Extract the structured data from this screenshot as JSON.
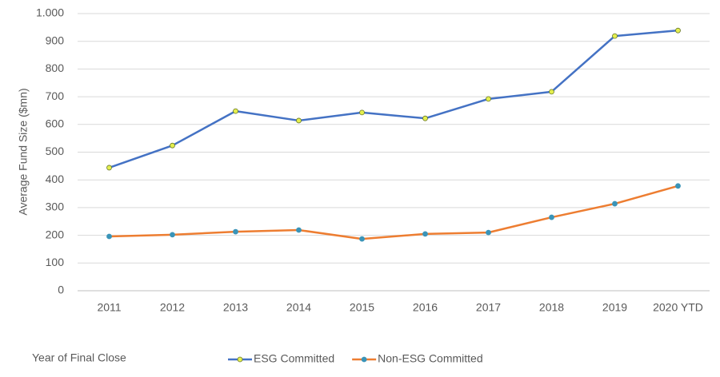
{
  "chart_data": {
    "type": "line",
    "y_label": "Average Fund Size ($mn)",
    "x_label": "Year of Final Close",
    "categories": [
      "2011",
      "2012",
      "2013",
      "2014",
      "2015",
      "2016",
      "2017",
      "2018",
      "2019",
      "2020 YTD"
    ],
    "series": [
      {
        "name": "ESG Committed",
        "color": "#4472c4",
        "marker_color": "#e4ef4f",
        "values": [
          444,
          524,
          648,
          614,
          643,
          622,
          692,
          718,
          919,
          939
        ]
      },
      {
        "name": "Non-ESG Committed",
        "color": "#ed7d31",
        "marker_color": "#3a94b8",
        "values": [
          196,
          202,
          213,
          219,
          187,
          205,
          210,
          265,
          314,
          378
        ]
      }
    ],
    "ylim": [
      0,
      1000
    ],
    "yticks": [
      0,
      100,
      200,
      300,
      400,
      500,
      600,
      700,
      800,
      900,
      {
        "value": 1000,
        "label": "1.000"
      }
    ],
    "grid": true,
    "legend": "bottom"
  }
}
